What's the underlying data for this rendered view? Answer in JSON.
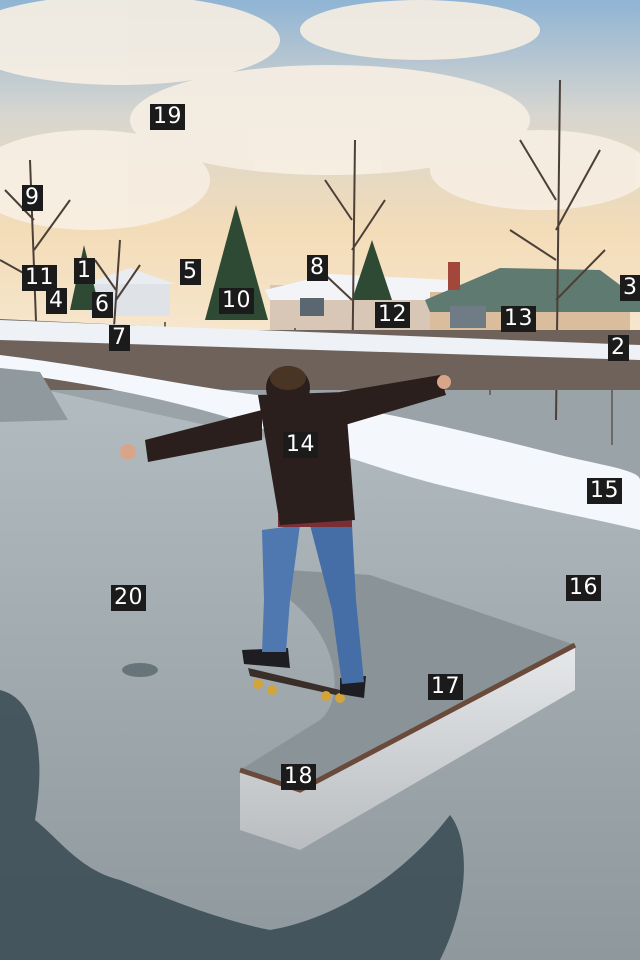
{
  "scene": {
    "palette": {
      "sky_top": "#8fb6d6",
      "sky_warm": "#f3dcb8",
      "cloud": "#f7eee2",
      "snow": "#f4f7fb",
      "concrete": "#a7b0b4",
      "wet_concrete": "#3c4e57",
      "hoodie": "#2a1f1d",
      "jeans": "#4f78b0",
      "ledge_metal": "#c7cacd",
      "roof_green": "#5f7a70"
    },
    "markers": [
      {
        "id": "1",
        "label": "1"
      },
      {
        "id": "2",
        "label": "2"
      },
      {
        "id": "3",
        "label": "3"
      },
      {
        "id": "4",
        "label": "4"
      },
      {
        "id": "5",
        "label": "5"
      },
      {
        "id": "6",
        "label": "6"
      },
      {
        "id": "7",
        "label": "7"
      },
      {
        "id": "8",
        "label": "8"
      },
      {
        "id": "9",
        "label": "9"
      },
      {
        "id": "10",
        "label": "10"
      },
      {
        "id": "11",
        "label": "11"
      },
      {
        "id": "12",
        "label": "12"
      },
      {
        "id": "13",
        "label": "13"
      },
      {
        "id": "14",
        "label": "14"
      },
      {
        "id": "15",
        "label": "15"
      },
      {
        "id": "16",
        "label": "16"
      },
      {
        "id": "17",
        "label": "17"
      },
      {
        "id": "18",
        "label": "18"
      },
      {
        "id": "19",
        "label": "19"
      },
      {
        "id": "20",
        "label": "20"
      }
    ]
  }
}
